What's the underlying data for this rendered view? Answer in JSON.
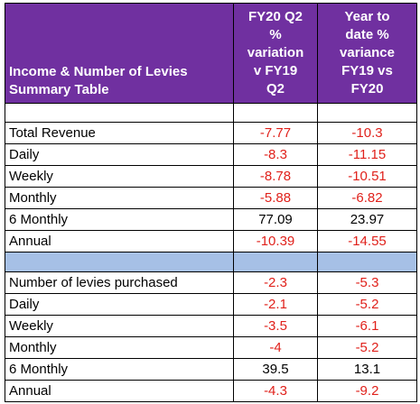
{
  "colors": {
    "header_bg": "#7030a0",
    "header_text": "#ffffff",
    "separator_bg": "#a6c0e6",
    "negative_value": "#e0211b",
    "positive_value": "#000000"
  },
  "header": {
    "title_line1": "Income & Number of Levies",
    "title_line2": "Summary Table",
    "col2_lines": [
      "FY20 Q2",
      "%",
      "variation",
      "v FY19",
      "Q2"
    ],
    "col3_lines": [
      "Year to",
      "date %",
      "variance",
      "FY19 vs",
      "FY20"
    ]
  },
  "revenue_rows": [
    {
      "label": "Total Revenue",
      "q2": "-7.77",
      "ytd": "-10.3"
    },
    {
      "label": "Daily",
      "q2": "-8.3",
      "ytd": "-11.15"
    },
    {
      "label": "Weekly",
      "q2": "-8.78",
      "ytd": "-10.51"
    },
    {
      "label": "Monthly",
      "q2": "-5.88",
      "ytd": "-6.82"
    },
    {
      "label": "6 Monthly",
      "q2": "77.09",
      "ytd": "23.97"
    },
    {
      "label": "Annual",
      "q2": "-10.39",
      "ytd": "-14.55"
    }
  ],
  "levy_rows": [
    {
      "label": "Number of levies purchased",
      "q2": "-2.3",
      "ytd": "-5.3"
    },
    {
      "label": "Daily",
      "q2": "-2.1",
      "ytd": "-5.2"
    },
    {
      "label": "Weekly",
      "q2": "-3.5",
      "ytd": "-6.1"
    },
    {
      "label": "Monthly",
      "q2": "-4",
      "ytd": "-5.2"
    },
    {
      "label": "6 Monthly",
      "q2": "39.5",
      "ytd": "13.1"
    },
    {
      "label": "Annual",
      "q2": "-4.3",
      "ytd": "-9.2"
    }
  ]
}
